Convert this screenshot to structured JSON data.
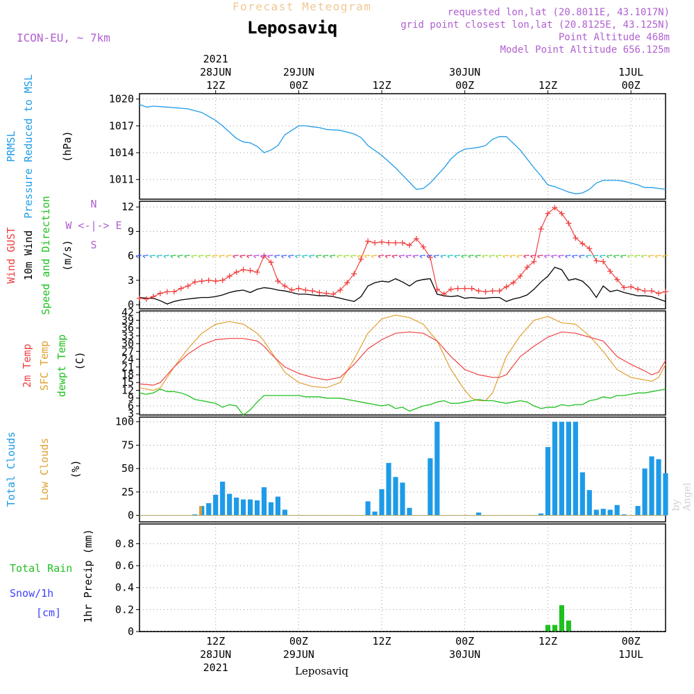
{
  "header": {
    "super_title": "Forecast Meteogram",
    "location": "Leposaviq",
    "model": "ICON-EU, ~ 7km",
    "requested": "requested lon,lat (20.8011E, 43.1017N)",
    "grid_point": "grid point closest lon,lat (20.8125E, 43.125N)",
    "point_altitude": "Point Altitude 468m",
    "model_altitude": "Model Point Altitude 656.125m",
    "watermark": "by Angel",
    "footer_location": "Leposaviq"
  },
  "time_axis": {
    "top_ticks": [
      {
        "t": 12,
        "lines": [
          "2021",
          "28JUN",
          "12Z"
        ]
      },
      {
        "t": 24,
        "lines": [
          "29JUN",
          "00Z"
        ]
      },
      {
        "t": 36,
        "lines": [
          "12Z"
        ]
      },
      {
        "t": 48,
        "lines": [
          "30JUN",
          "00Z"
        ]
      },
      {
        "t": 60,
        "lines": [
          "12Z"
        ]
      },
      {
        "t": 72,
        "lines": [
          "1JUL",
          "00Z"
        ]
      }
    ],
    "bottom_ticks": [
      {
        "t": 12,
        "lines": [
          "12Z",
          "28JUN",
          "2021"
        ]
      },
      {
        "t": 24,
        "lines": [
          "00Z",
          "29JUN"
        ]
      },
      {
        "t": 36,
        "lines": [
          "12Z"
        ]
      },
      {
        "t": 48,
        "lines": [
          "00Z",
          "30JUN"
        ]
      },
      {
        "t": 60,
        "lines": [
          "12Z"
        ]
      },
      {
        "t": 72,
        "lines": [
          "00Z",
          "1JUL"
        ]
      }
    ],
    "t_range": [
      1,
      77
    ]
  },
  "panel_labels": {
    "pressure": [
      "PRMSL",
      "Pressure Reduced to MSL",
      "(hPa)"
    ],
    "wind": [
      "Wind GUST",
      "10m Wind",
      "Speed and Direction",
      "(m/s)"
    ],
    "compass": [
      "N",
      "W <-|-> E",
      "S"
    ],
    "temp": [
      "2m Temp",
      "SFC Temp",
      "dewpt Temp",
      "(C)"
    ],
    "clouds": [
      "Total Clouds",
      "Low Clouds",
      "(%)"
    ],
    "precip": [
      "Total  Rain",
      "Snow/1h",
      "[cm]",
      "1hr Precip (mm)"
    ]
  },
  "colors": {
    "pressure": "#1e9be8",
    "gust": "#f04040",
    "wind": "#000000",
    "t2m": "#f04040",
    "sfc": "#e0a030",
    "dewpt": "#20c020",
    "total_clouds": "#1e9be8",
    "low_clouds": "#e0a030",
    "rain": "#20c020",
    "snow": "#4040ff",
    "header_purple": "#b060d0",
    "super_title": "#f0c890"
  },
  "chart_data": [
    {
      "type": "line",
      "title": "PRMSL",
      "ylabel": "(hPa)",
      "ylim": [
        1008.8,
        1020.6
      ],
      "yticks": [
        1011,
        1014,
        1017,
        1020
      ],
      "grid": true,
      "series": [
        {
          "name": "PRMSL",
          "x": [
            1,
            2,
            3,
            5,
            8,
            10,
            12,
            13,
            14,
            15,
            16,
            17,
            18,
            19,
            20,
            21,
            22,
            23,
            24,
            25,
            26,
            27,
            28,
            30,
            32,
            33,
            34,
            36,
            38,
            39,
            40,
            41,
            42,
            43,
            45,
            46,
            47,
            48,
            49,
            50,
            51,
            52,
            53,
            54,
            56,
            58,
            59,
            60,
            61,
            62,
            63,
            64,
            65,
            66,
            67,
            68,
            69,
            70,
            71,
            72,
            73,
            74,
            75,
            76,
            77
          ],
          "values": [
            1019.4,
            1019.1,
            1019.2,
            1019.1,
            1018.9,
            1018.5,
            1017.6,
            1017.0,
            1016.3,
            1015.6,
            1015.2,
            1015.1,
            1014.7,
            1014.0,
            1014.3,
            1014.8,
            1016.0,
            1016.5,
            1017.0,
            1017.0,
            1016.9,
            1016.8,
            1016.6,
            1016.5,
            1016.1,
            1015.7,
            1014.8,
            1013.7,
            1012.3,
            1011.5,
            1010.7,
            1009.9,
            1010.0,
            1010.6,
            1012.3,
            1013.3,
            1014.0,
            1014.4,
            1014.5,
            1014.6,
            1014.8,
            1015.5,
            1015.8,
            1015.8,
            1014.3,
            1012.3,
            1011.4,
            1010.4,
            1010.2,
            1009.9,
            1009.6,
            1009.4,
            1009.5,
            1009.9,
            1010.6,
            1010.9,
            1010.9,
            1010.9,
            1010.8,
            1010.6,
            1010.4,
            1010.1,
            1010.1,
            1010.0,
            1009.9
          ]
        }
      ]
    },
    {
      "type": "line",
      "title": "Wind GUST / 10m Wind Speed and Direction",
      "ylabel": "(m/s)",
      "ylim": [
        -0.5,
        12.7
      ],
      "yticks": [
        0,
        3,
        6,
        9,
        12
      ],
      "grid": true,
      "barb_level": 6,
      "series": [
        {
          "name": "Wind GUST",
          "x": [
            1,
            2,
            3,
            4,
            5,
            6,
            7,
            8,
            9,
            10,
            11,
            12,
            13,
            14,
            15,
            16,
            17,
            18,
            19,
            20,
            21,
            22,
            23,
            24,
            25,
            26,
            27,
            28,
            29,
            30,
            31,
            32,
            33,
            34,
            35,
            36,
            37,
            38,
            39,
            40,
            41,
            42,
            43,
            44,
            45,
            46,
            47,
            48,
            49,
            50,
            51,
            52,
            53,
            54,
            55,
            56,
            57,
            58,
            59,
            60,
            61,
            62,
            63,
            64,
            65,
            66,
            67,
            68,
            69,
            70,
            71,
            72,
            73,
            74,
            75,
            76,
            77
          ],
          "values": [
            0.8,
            0.7,
            1.0,
            1.4,
            1.6,
            1.6,
            2.0,
            2.3,
            2.8,
            2.9,
            3.0,
            2.9,
            3.0,
            3.5,
            4.0,
            4.3,
            4.2,
            4.0,
            6.0,
            5.2,
            2.9,
            2.3,
            1.8,
            2.0,
            1.8,
            1.7,
            1.5,
            1.4,
            1.3,
            1.8,
            2.7,
            3.8,
            5.6,
            7.8,
            7.6,
            7.7,
            7.6,
            7.6,
            7.6,
            7.3,
            8.1,
            7.1,
            5.8,
            1.9,
            1.3,
            1.9,
            2.0,
            2.0,
            2.0,
            1.7,
            1.6,
            1.7,
            1.7,
            2.2,
            2.7,
            3.5,
            4.6,
            5.3,
            9.3,
            11.2,
            11.9,
            11.2,
            10.0,
            8.2,
            7.5,
            6.9,
            5.4,
            5.3,
            4.1,
            3.1,
            2.1,
            2.2,
            1.9,
            1.7,
            1.7,
            1.4,
            1.6
          ]
        },
        {
          "name": "10m Wind",
          "x": [
            1,
            2,
            3,
            4,
            5,
            6,
            7,
            8,
            9,
            10,
            11,
            12,
            13,
            14,
            15,
            16,
            17,
            18,
            19,
            20,
            21,
            22,
            23,
            24,
            25,
            26,
            27,
            28,
            29,
            30,
            31,
            32,
            33,
            34,
            35,
            36,
            37,
            38,
            39,
            40,
            41,
            42,
            43,
            44,
            45,
            46,
            47,
            48,
            49,
            50,
            51,
            52,
            53,
            54,
            55,
            56,
            57,
            58,
            59,
            60,
            61,
            62,
            63,
            64,
            65,
            66,
            67,
            68,
            69,
            70,
            71,
            72,
            73,
            74,
            75,
            76,
            77
          ],
          "values": [
            0.9,
            0.8,
            0.8,
            0.5,
            0.1,
            0.4,
            0.6,
            0.7,
            0.8,
            0.9,
            0.9,
            1.0,
            1.2,
            1.5,
            1.7,
            1.8,
            1.5,
            1.9,
            2.1,
            2.0,
            1.8,
            1.7,
            1.5,
            1.3,
            1.3,
            1.2,
            1.1,
            1.1,
            1.0,
            0.8,
            0.6,
            0.4,
            1.0,
            2.3,
            2.7,
            2.9,
            2.8,
            3.2,
            2.8,
            2.3,
            2.9,
            3.1,
            3.2,
            1.3,
            1.1,
            1.0,
            1.1,
            0.8,
            0.9,
            0.8,
            0.8,
            0.9,
            0.9,
            0.4,
            0.7,
            0.9,
            1.2,
            1.9,
            2.8,
            3.5,
            4.6,
            4.3,
            3.0,
            3.2,
            2.9,
            2.1,
            0.9,
            2.3,
            1.6,
            1.8,
            1.5,
            1.3,
            1.1,
            1.1,
            1.0,
            0.7,
            0.4
          ]
        }
      ]
    },
    {
      "type": "line",
      "title": "2m Temp / SFC Temp / dewpt Temp",
      "ylabel": "(C)",
      "ylim": [
        2.5,
        42.6
      ],
      "yticks": [
        3,
        6,
        9,
        12,
        15,
        18,
        21,
        24,
        27,
        30,
        33,
        36,
        39,
        42
      ],
      "grid": true,
      "series": [
        {
          "name": "2m Temp",
          "x": [
            1,
            3,
            4,
            5,
            6,
            8,
            10,
            12,
            14,
            16,
            18,
            19,
            20,
            22,
            24,
            26,
            28,
            30,
            32,
            34,
            36,
            38,
            40,
            42,
            44,
            46,
            48,
            50,
            52,
            53,
            54,
            56,
            58,
            60,
            62,
            64,
            66,
            68,
            70,
            72,
            74,
            75,
            76,
            77
          ],
          "values": [
            14.5,
            14,
            15,
            18,
            21,
            26,
            29.5,
            31.5,
            32,
            32,
            31,
            29,
            26,
            21,
            18.5,
            17,
            16,
            17,
            22,
            28,
            31.5,
            34,
            34.5,
            34,
            31,
            25,
            20,
            18,
            17,
            17,
            18,
            25,
            29,
            32.5,
            34.5,
            34,
            32.5,
            31,
            25,
            22,
            19.5,
            18,
            19,
            23.5
          ]
        },
        {
          "name": "SFC Temp",
          "x": [
            1,
            3,
            4,
            5,
            6,
            8,
            10,
            12,
            14,
            16,
            18,
            19,
            20,
            22,
            24,
            26,
            28,
            30,
            32,
            34,
            36,
            38,
            40,
            42,
            44,
            46,
            48,
            49,
            50,
            51,
            52,
            54,
            56,
            58,
            60,
            62,
            64,
            66,
            68,
            70,
            72,
            74,
            75,
            76,
            77
          ],
          "values": [
            13,
            12,
            13,
            17,
            21,
            28,
            34,
            37.5,
            38.5,
            37.5,
            34,
            31,
            27,
            19,
            15,
            13.5,
            13,
            15,
            24,
            34,
            39.5,
            41,
            40,
            37.5,
            31,
            20,
            12,
            9,
            8,
            8,
            11,
            25,
            33,
            39,
            40.5,
            38,
            37.5,
            33,
            27,
            20,
            17,
            16,
            15.5,
            17,
            22
          ]
        },
        {
          "name": "dewpt Temp",
          "x": [
            1,
            2,
            3,
            4,
            5,
            6,
            7,
            8,
            9,
            10,
            11,
            12,
            13,
            14,
            15,
            16,
            17,
            18,
            19,
            20,
            21,
            22,
            23,
            24,
            25,
            26,
            27,
            28,
            29,
            30,
            31,
            32,
            33,
            34,
            35,
            36,
            37,
            38,
            39,
            40,
            41,
            42,
            43,
            44,
            45,
            46,
            47,
            48,
            49,
            50,
            51,
            52,
            53,
            54,
            55,
            56,
            57,
            58,
            59,
            60,
            61,
            62,
            63,
            64,
            65,
            66,
            67,
            68,
            69,
            70,
            71,
            72,
            73,
            74,
            75,
            76,
            77
          ],
          "values": [
            11,
            10.5,
            11,
            12.5,
            11.5,
            11.5,
            11,
            10,
            8.5,
            8,
            7.5,
            7,
            5.5,
            6.5,
            6,
            2.5,
            4.5,
            7.5,
            10,
            10,
            10,
            10,
            10,
            10,
            9.5,
            9.5,
            9.5,
            9,
            9,
            9,
            8.5,
            8,
            7.5,
            7,
            6.5,
            6,
            6.5,
            5,
            5.5,
            4,
            5,
            6,
            6.5,
            7.5,
            8,
            7,
            7,
            7.5,
            8,
            8.5,
            8,
            8,
            7.5,
            7,
            7.5,
            8,
            7.5,
            6,
            5,
            5.5,
            5.5,
            6.5,
            6,
            6.5,
            6.5,
            8,
            8.5,
            9.5,
            9,
            10,
            10,
            10.5,
            11,
            11,
            11.5,
            12,
            12.5
          ]
        }
      ]
    },
    {
      "type": "bar",
      "title": "Total Clouds / Low Clouds",
      "ylabel": "(%)",
      "ylim": [
        -7,
        105
      ],
      "yticks": [
        0,
        25,
        50,
        75,
        100
      ],
      "grid": true,
      "series": [
        {
          "name": "Total Clouds",
          "x": [
            9,
            10,
            11,
            12,
            13,
            14,
            15,
            16,
            17,
            18,
            19,
            20,
            21,
            22,
            34,
            35,
            36,
            37,
            38,
            39,
            40,
            43,
            44,
            50,
            59,
            60,
            61,
            62,
            63,
            64,
            65,
            66,
            67,
            68,
            69,
            70,
            71,
            73,
            74,
            75,
            76,
            77
          ],
          "values": [
            1,
            10,
            13,
            22,
            36,
            23,
            19,
            17,
            17,
            16,
            30,
            14,
            20,
            6,
            15,
            4,
            28,
            56,
            41,
            35,
            8,
            61,
            100,
            3,
            2,
            73,
            100,
            100,
            100,
            100,
            46,
            27,
            6,
            7,
            6,
            11,
            1,
            10,
            50,
            63,
            60,
            45
          ]
        },
        {
          "name": "Low Clouds",
          "x": [
            10
          ],
          "values": [
            10
          ]
        }
      ]
    },
    {
      "type": "bar",
      "title": "1hr Precip",
      "ylabel": "1hr Precip (mm)",
      "ylim": [
        0,
        0.98
      ],
      "yticks": [
        0,
        0.2,
        0.4,
        0.6,
        0.8
      ],
      "grid": true,
      "series": [
        {
          "name": "Total Rain",
          "x": [
            60,
            61,
            62,
            63
          ],
          "values": [
            0.06,
            0.06,
            0.24,
            0.1
          ]
        },
        {
          "name": "Snow/1h",
          "x": [],
          "values": []
        }
      ]
    }
  ]
}
